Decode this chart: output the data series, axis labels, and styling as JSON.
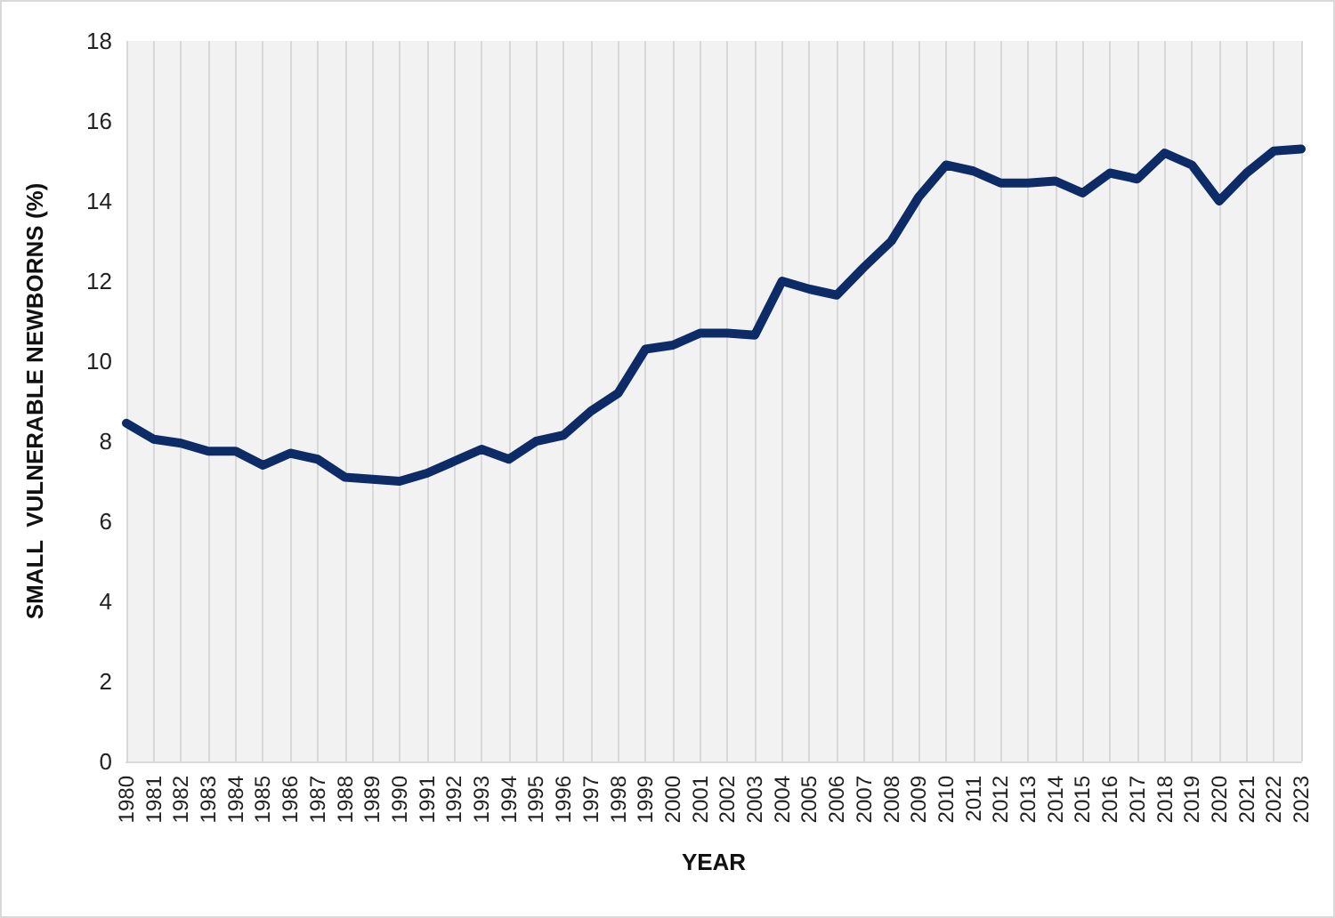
{
  "chart_data": {
    "type": "line",
    "xlabel": "YEAR",
    "ylabel": "SMALL  VULNERABLE NEWBORNS (%)",
    "categories": [
      "1980",
      "1981",
      "1982",
      "1983",
      "1984",
      "1985",
      "1986",
      "1987",
      "1988",
      "1989",
      "1990",
      "1991",
      "1992",
      "1993",
      "1994",
      "1995",
      "1996",
      "1997",
      "1998",
      "1999",
      "2000",
      "2001",
      "2002",
      "2003",
      "2004",
      "2005",
      "2006",
      "2007",
      "2008",
      "2009",
      "2010",
      "2011",
      "2012",
      "2013",
      "2014",
      "2015",
      "2016",
      "2017",
      "2018",
      "2019",
      "2020",
      "2021",
      "2022",
      "2023"
    ],
    "series": [
      {
        "color": "#0d2b66",
        "values": [
          8.45,
          8.05,
          7.95,
          7.75,
          7.75,
          7.4,
          7.7,
          7.55,
          7.1,
          7.05,
          7.0,
          7.2,
          7.5,
          7.8,
          7.55,
          8.0,
          8.15,
          8.75,
          9.2,
          10.3,
          10.4,
          10.7,
          10.7,
          10.65,
          12.0,
          11.8,
          11.65,
          12.35,
          13.0,
          14.1,
          14.9,
          14.75,
          14.45,
          14.45,
          14.5,
          14.2,
          14.7,
          14.55,
          15.2,
          14.9,
          14.0,
          14.7,
          15.25,
          15.3
        ]
      }
    ],
    "ylim": [
      0,
      18
    ],
    "yticks": [
      0,
      2,
      4,
      6,
      8,
      10,
      12,
      14,
      16,
      18
    ],
    "grid": "x",
    "marker": "none",
    "line_style": "solid"
  }
}
